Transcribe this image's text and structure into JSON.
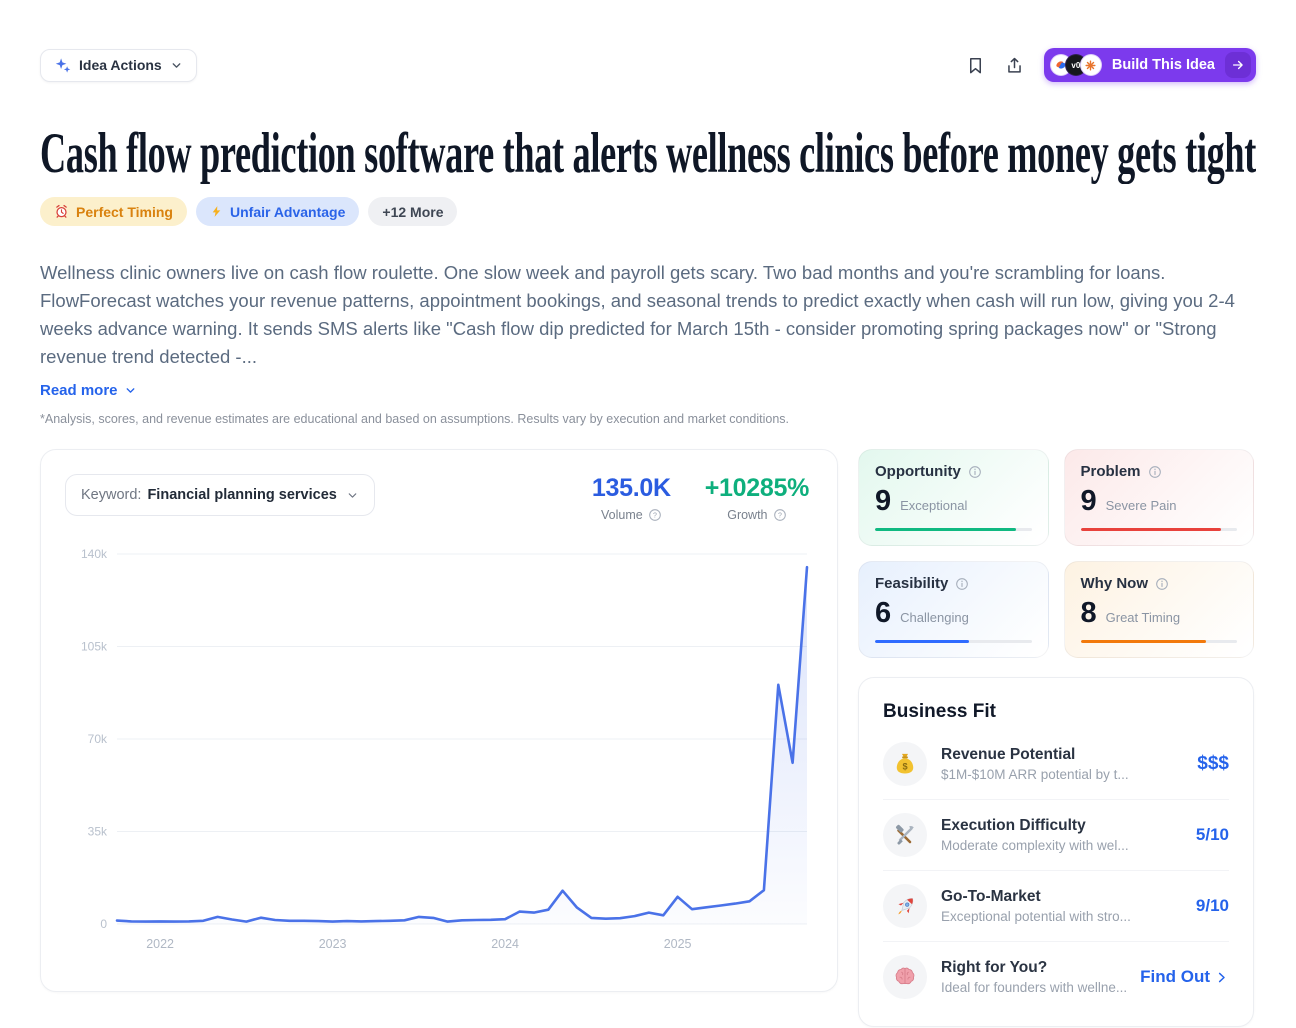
{
  "topbar": {
    "idea_actions_label": "Idea Actions",
    "build_button_label": "Build This Idea",
    "build_badges": [
      "bolt-logo-badge",
      "v0-logo-badge",
      "spark-logo-badge"
    ],
    "v0_badge_text": "v0"
  },
  "header": {
    "title": "Cash flow prediction software that alerts wellness clinics before money gets tight",
    "tags": [
      {
        "icon": "alarm-clock-icon",
        "label": "Perfect Timing"
      },
      {
        "icon": "lightning-icon",
        "label": "Unfair Advantage"
      },
      {
        "icon": "",
        "label": "+12 More"
      }
    ],
    "description": "Wellness clinic owners live on cash flow roulette. One slow week and payroll gets scary. Two bad months and you're scrambling for loans. FlowForecast watches your revenue patterns, appointment bookings, and seasonal trends to predict exactly when cash will run low, giving you 2-4 weeks advance warning. It sends SMS alerts like \"Cash flow dip predicted for March 15th - consider promoting spring packages now\" or \"Strong revenue trend detected -...",
    "read_more_label": "Read more",
    "disclaimer": "*Analysis, scores, and revenue estimates are educational and based on assumptions. Results vary by execution and market conditions."
  },
  "trend_panel": {
    "keyword_label": "Keyword:",
    "keyword_value": "Financial planning services",
    "volume": {
      "value": "135.0K",
      "label": "Volume",
      "color": "#2b5ce0"
    },
    "growth": {
      "value": "+10285%",
      "label": "Growth",
      "color": "#0eaf7d"
    }
  },
  "scores": [
    {
      "title": "Opportunity",
      "value": 9,
      "label": "Exceptional",
      "accent": "#10b981",
      "tint": "#e3f8ee"
    },
    {
      "title": "Problem",
      "value": 9,
      "label": "Severe Pain",
      "accent": "#e8423c",
      "tint": "#fce9e9"
    },
    {
      "title": "Feasibility",
      "value": 6,
      "label": "Challenging",
      "accent": "#2f6bff",
      "tint": "#e7f0fd"
    },
    {
      "title": "Why Now",
      "value": 8,
      "label": "Great Timing",
      "accent": "#f2790b",
      "tint": "#fdf2e2"
    }
  ],
  "business_fit": {
    "title": "Business Fit",
    "items": [
      {
        "icon": "money-bag-icon",
        "title": "Revenue Potential",
        "subtitle": "$1M-$10M ARR potential by t...",
        "value": "$$$"
      },
      {
        "icon": "tools-icon",
        "title": "Execution Difficulty",
        "subtitle": "Moderate complexity with wel...",
        "value": "5/10"
      },
      {
        "icon": "rocket-icon",
        "title": "Go-To-Market",
        "subtitle": "Exceptional potential with stro...",
        "value": "9/10"
      },
      {
        "icon": "brain-icon",
        "title": "Right for You?",
        "subtitle": "Ideal for founders with wellne...",
        "value": "Find Out"
      }
    ]
  },
  "chart_data": {
    "type": "area",
    "title": "Search volume trend for keyword",
    "keyword": "Financial planning services",
    "volume": "135.0K",
    "growth": "+10285%",
    "x": [
      "2021-10",
      "2021-11",
      "2021-12",
      "2022-01",
      "2022-02",
      "2022-03",
      "2022-04",
      "2022-05",
      "2022-06",
      "2022-07",
      "2022-08",
      "2022-09",
      "2022-10",
      "2022-11",
      "2022-12",
      "2023-01",
      "2023-02",
      "2023-03",
      "2023-04",
      "2023-05",
      "2023-06",
      "2023-07",
      "2023-08",
      "2023-09",
      "2023-10",
      "2023-11",
      "2023-12",
      "2024-01",
      "2024-02",
      "2024-03",
      "2024-04",
      "2024-05",
      "2024-06",
      "2024-07",
      "2024-08",
      "2024-09",
      "2024-10",
      "2024-11",
      "2024-12",
      "2025-01",
      "2025-02",
      "2025-03",
      "2025-04",
      "2025-05",
      "2025-06",
      "2025-07",
      "2025-08",
      "2025-09",
      "2025-10"
    ],
    "values": [
      1300,
      1000,
      900,
      1000,
      900,
      1000,
      1200,
      2700,
      1700,
      900,
      2400,
      1500,
      1200,
      1200,
      1100,
      900,
      1100,
      1000,
      1100,
      1200,
      1400,
      2700,
      2300,
      900,
      1400,
      1500,
      1600,
      1800,
      4700,
      4300,
      5400,
      12600,
      6200,
      2300,
      2000,
      2200,
      3000,
      4300,
      3300,
      10300,
      5600,
      6300,
      7000,
      7700,
      8600,
      12800,
      90500,
      61000,
      135000
    ],
    "ylim": [
      0,
      140000
    ],
    "yticks": [
      0,
      35000,
      70000,
      105000,
      140000
    ],
    "ytick_labels": [
      "0",
      "35k",
      "70k",
      "105k",
      "140k"
    ],
    "xtick_positions": [
      "2022-01",
      "2023-01",
      "2024-01",
      "2025-01"
    ],
    "xtick_labels": [
      "2022",
      "2023",
      "2024",
      "2025"
    ],
    "grid": "horizontal",
    "legend": "none",
    "line_color": "#4a72e8",
    "fill_color": "rgba(74,114,232,0.18)"
  }
}
